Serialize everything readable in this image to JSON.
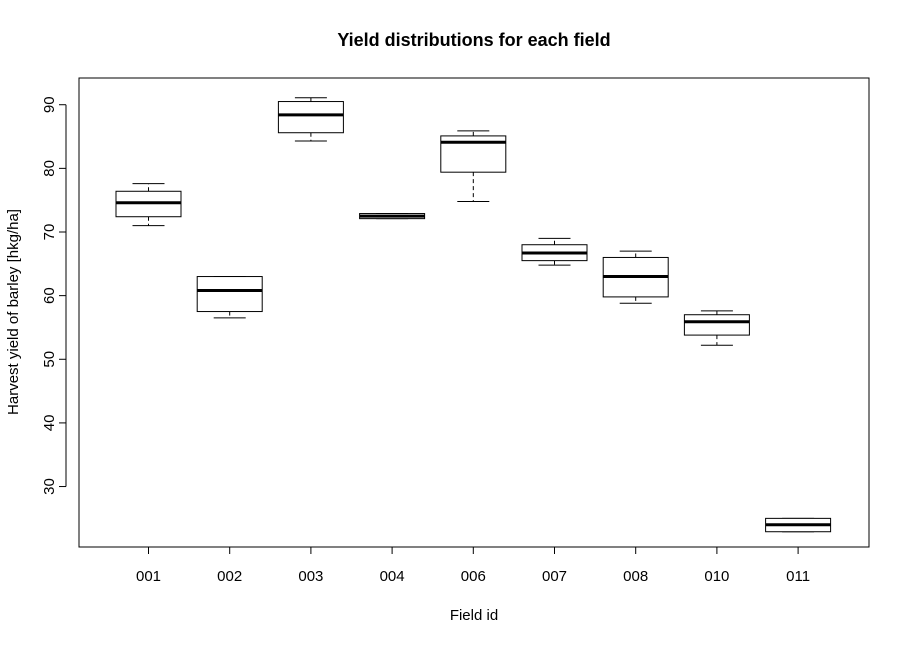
{
  "chart_data": {
    "type": "boxplot",
    "title": "Yield distributions for each field",
    "xlabel": "Field id",
    "ylabel": "Harvest yield of barley [hkg/ha]",
    "ylim": [
      20.5,
      94.2
    ],
    "yticks": [
      "30",
      "40",
      "50",
      "60",
      "70",
      "80",
      "90"
    ],
    "grid": false,
    "legend": "none",
    "categories": [
      "001",
      "002",
      "003",
      "004",
      "006",
      "007",
      "008",
      "010",
      "011"
    ],
    "boxes": [
      {
        "field": "001",
        "min": 71.0,
        "q1": 72.4,
        "median": 74.6,
        "q3": 76.4,
        "max": 77.6
      },
      {
        "field": "002",
        "min": 56.5,
        "q1": 57.5,
        "median": 60.8,
        "q3": 63.0,
        "max": 63.0
      },
      {
        "field": "003",
        "min": 84.3,
        "q1": 85.6,
        "median": 88.4,
        "q3": 90.5,
        "max": 91.1
      },
      {
        "field": "004",
        "min": 72.1,
        "q1": 72.1,
        "median": 72.5,
        "q3": 72.9,
        "max": 72.9
      },
      {
        "field": "006",
        "min": 74.8,
        "q1": 79.4,
        "median": 84.1,
        "q3": 85.1,
        "max": 85.9
      },
      {
        "field": "007",
        "min": 64.8,
        "q1": 65.5,
        "median": 66.7,
        "q3": 68.0,
        "max": 69.0
      },
      {
        "field": "008",
        "min": 58.8,
        "q1": 59.8,
        "median": 63.0,
        "q3": 66.0,
        "max": 67.0
      },
      {
        "field": "010",
        "min": 52.2,
        "q1": 53.8,
        "median": 55.9,
        "q3": 57.0,
        "max": 57.6
      },
      {
        "field": "011",
        "min": 22.9,
        "q1": 22.9,
        "median": 24.0,
        "q3": 25.0,
        "max": 25.0
      }
    ]
  }
}
